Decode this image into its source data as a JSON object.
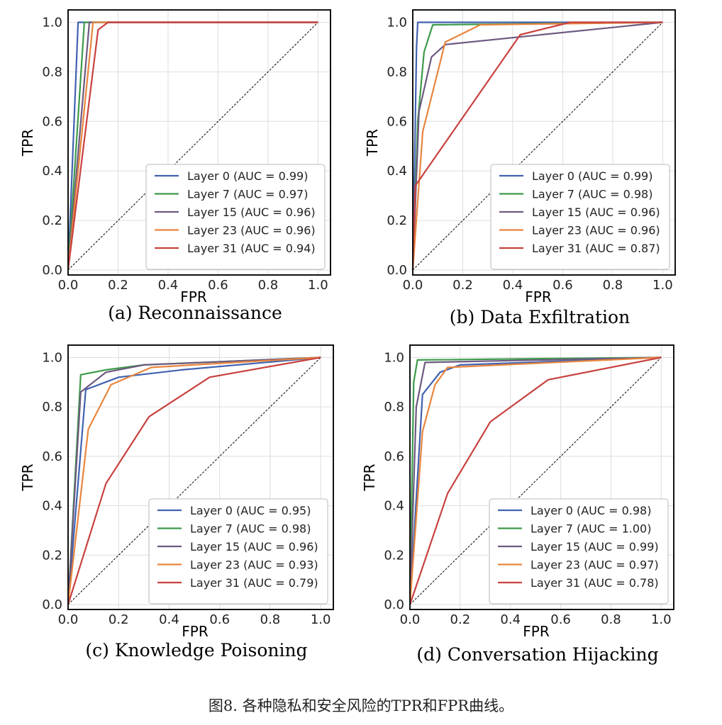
{
  "figure_caption": "图8. 各种隐私和安全风险的TPR和FPR曲线。",
  "colors": {
    "layer0": "#4062b0",
    "layer7": "#3d9a4b",
    "layer15": "#6e5a80",
    "layer23": "#e8853e",
    "layer31": "#c8413f",
    "chance": "#000000",
    "grid": "#dddddd"
  },
  "chart_data": [
    {
      "type": "line",
      "subcaption": "(a) Reconnaissance",
      "xlabel": "FPR",
      "ylabel": "TPR",
      "xlim": [
        0,
        1.05
      ],
      "ylim": [
        -0.02,
        1.05
      ],
      "xticks": [
        "0.0",
        "0.2",
        "0.4",
        "0.6",
        "0.8",
        "1.0"
      ],
      "yticks": [
        "0.0",
        "0.2",
        "0.4",
        "0.6",
        "0.8",
        "1.0"
      ],
      "legend_position": "lower-right",
      "series": [
        {
          "name": "Layer 0 (AUC = 0.99)",
          "color": "#4062b0",
          "x": [
            0,
            0.04,
            1.0
          ],
          "y": [
            0,
            1.0,
            1.0
          ]
        },
        {
          "name": "Layer 7 (AUC = 0.97)",
          "color": "#3d9a4b",
          "x": [
            0,
            0.065,
            1.0
          ],
          "y": [
            0,
            1.0,
            1.0
          ]
        },
        {
          "name": "Layer 15 (AUC = 0.96)",
          "color": "#6e5a80",
          "x": [
            0,
            0.085,
            1.0
          ],
          "y": [
            0,
            1.0,
            1.0
          ]
        },
        {
          "name": "Layer 23 (AUC = 0.96)",
          "color": "#e8853e",
          "x": [
            0,
            0.1,
            1.0
          ],
          "y": [
            0,
            1.0,
            1.0
          ]
        },
        {
          "name": "Layer 31 (AUC = 0.94)",
          "color": "#c8413f",
          "x": [
            0,
            0.12,
            0.16,
            1.0
          ],
          "y": [
            0,
            0.97,
            1.0,
            1.0
          ]
        }
      ]
    },
    {
      "type": "line",
      "subcaption": "(b) Data Exfiltration",
      "xlabel": "FPR",
      "ylabel": "TPR",
      "xlim": [
        0,
        1.05
      ],
      "ylim": [
        -0.02,
        1.05
      ],
      "xticks": [
        "0.0",
        "0.2",
        "0.4",
        "0.6",
        "0.8",
        "1.0"
      ],
      "yticks": [
        "0.0",
        "0.2",
        "0.4",
        "0.6",
        "0.8",
        "1.0"
      ],
      "legend_position": "lower-right",
      "series": [
        {
          "name": "Layer 0 (AUC = 0.99)",
          "color": "#4062b0",
          "x": [
            0,
            0.015,
            0.02,
            1.0
          ],
          "y": [
            0,
            0.9,
            1.0,
            1.0
          ]
        },
        {
          "name": "Layer 7 (AUC = 0.98)",
          "color": "#3d9a4b",
          "x": [
            0,
            0.02,
            0.045,
            0.08,
            1.0
          ],
          "y": [
            0,
            0.6,
            0.88,
            0.99,
            1.0
          ]
        },
        {
          "name": "Layer 15 (AUC = 0.96)",
          "color": "#6e5a80",
          "x": [
            0,
            0.025,
            0.075,
            0.13,
            1.0
          ],
          "y": [
            0,
            0.64,
            0.86,
            0.91,
            1.0
          ]
        },
        {
          "name": "Layer 23 (AUC = 0.96)",
          "color": "#e8853e",
          "x": [
            0,
            0.04,
            0.13,
            0.27,
            1.0
          ],
          "y": [
            0,
            0.56,
            0.92,
            0.99,
            1.0
          ]
        },
        {
          "name": "Layer 31 (AUC = 0.87)",
          "color": "#c8413f",
          "x": [
            0,
            0.01,
            0.43,
            0.63,
            1.0
          ],
          "y": [
            0,
            0.34,
            0.95,
            1.0,
            1.0
          ]
        }
      ]
    },
    {
      "type": "line",
      "subcaption": "(c) Knowledge Poisoning",
      "xlabel": "FPR",
      "ylabel": "TPR",
      "xlim": [
        0,
        1.05
      ],
      "ylim": [
        -0.02,
        1.05
      ],
      "xticks": [
        "0.0",
        "0.2",
        "0.4",
        "0.6",
        "0.8",
        "1.0"
      ],
      "yticks": [
        "0.0",
        "0.2",
        "0.4",
        "0.6",
        "0.8",
        "1.0"
      ],
      "legend_position": "lower-right",
      "series": [
        {
          "name": "Layer 0 (AUC = 0.95)",
          "color": "#4062b0",
          "x": [
            0,
            0.07,
            0.2,
            0.45,
            1.0
          ],
          "y": [
            0,
            0.87,
            0.92,
            0.95,
            1.0
          ]
        },
        {
          "name": "Layer 7 (AUC = 0.98)",
          "color": "#3d9a4b",
          "x": [
            0,
            0.05,
            0.15,
            0.3,
            1.0
          ],
          "y": [
            0,
            0.93,
            0.95,
            0.97,
            1.0
          ]
        },
        {
          "name": "Layer 15 (AUC = 0.96)",
          "color": "#6e5a80",
          "x": [
            0,
            0.05,
            0.15,
            0.3,
            1.0
          ],
          "y": [
            0,
            0.86,
            0.94,
            0.97,
            1.0
          ]
        },
        {
          "name": "Layer 23 (AUC = 0.93)",
          "color": "#e8853e",
          "x": [
            0,
            0.08,
            0.17,
            0.33,
            1.0
          ],
          "y": [
            0,
            0.71,
            0.89,
            0.96,
            1.0
          ]
        },
        {
          "name": "Layer 31 (AUC = 0.79)",
          "color": "#c8413f",
          "x": [
            0,
            0.15,
            0.32,
            0.56,
            1.0
          ],
          "y": [
            0,
            0.49,
            0.76,
            0.92,
            1.0
          ]
        }
      ]
    },
    {
      "type": "line",
      "subcaption": "(d) Conversation Hijacking",
      "xlabel": "FPR",
      "ylabel": "TPR",
      "xlim": [
        0,
        1.05
      ],
      "ylim": [
        -0.02,
        1.05
      ],
      "xticks": [
        "0.0",
        "0.2",
        "0.4",
        "0.6",
        "0.8",
        "1.0"
      ],
      "yticks": [
        "0.0",
        "0.2",
        "0.4",
        "0.6",
        "0.8",
        "1.0"
      ],
      "legend_position": "lower-right",
      "series": [
        {
          "name": "Layer 0 (AUC = 0.98)",
          "color": "#4062b0",
          "x": [
            0,
            0.05,
            0.12,
            0.2,
            1.0
          ],
          "y": [
            0,
            0.85,
            0.94,
            0.97,
            1.0
          ]
        },
        {
          "name": "Layer 7 (AUC = 1.00)",
          "color": "#3d9a4b",
          "x": [
            0,
            0.015,
            0.03,
            1.0
          ],
          "y": [
            0,
            0.9,
            0.99,
            1.0
          ]
        },
        {
          "name": "Layer 15 (AUC = 0.99)",
          "color": "#6e5a80",
          "x": [
            0,
            0.025,
            0.06,
            1.0
          ],
          "y": [
            0,
            0.8,
            0.98,
            1.0
          ]
        },
        {
          "name": "Layer 23 (AUC = 0.97)",
          "color": "#e8853e",
          "x": [
            0,
            0.05,
            0.1,
            0.15,
            1.0
          ],
          "y": [
            0,
            0.7,
            0.89,
            0.96,
            1.0
          ]
        },
        {
          "name": "Layer 31 (AUC = 0.78)",
          "color": "#c8413f",
          "x": [
            0,
            0.15,
            0.32,
            0.55,
            1.0
          ],
          "y": [
            0,
            0.45,
            0.74,
            0.91,
            1.0
          ]
        }
      ]
    }
  ]
}
